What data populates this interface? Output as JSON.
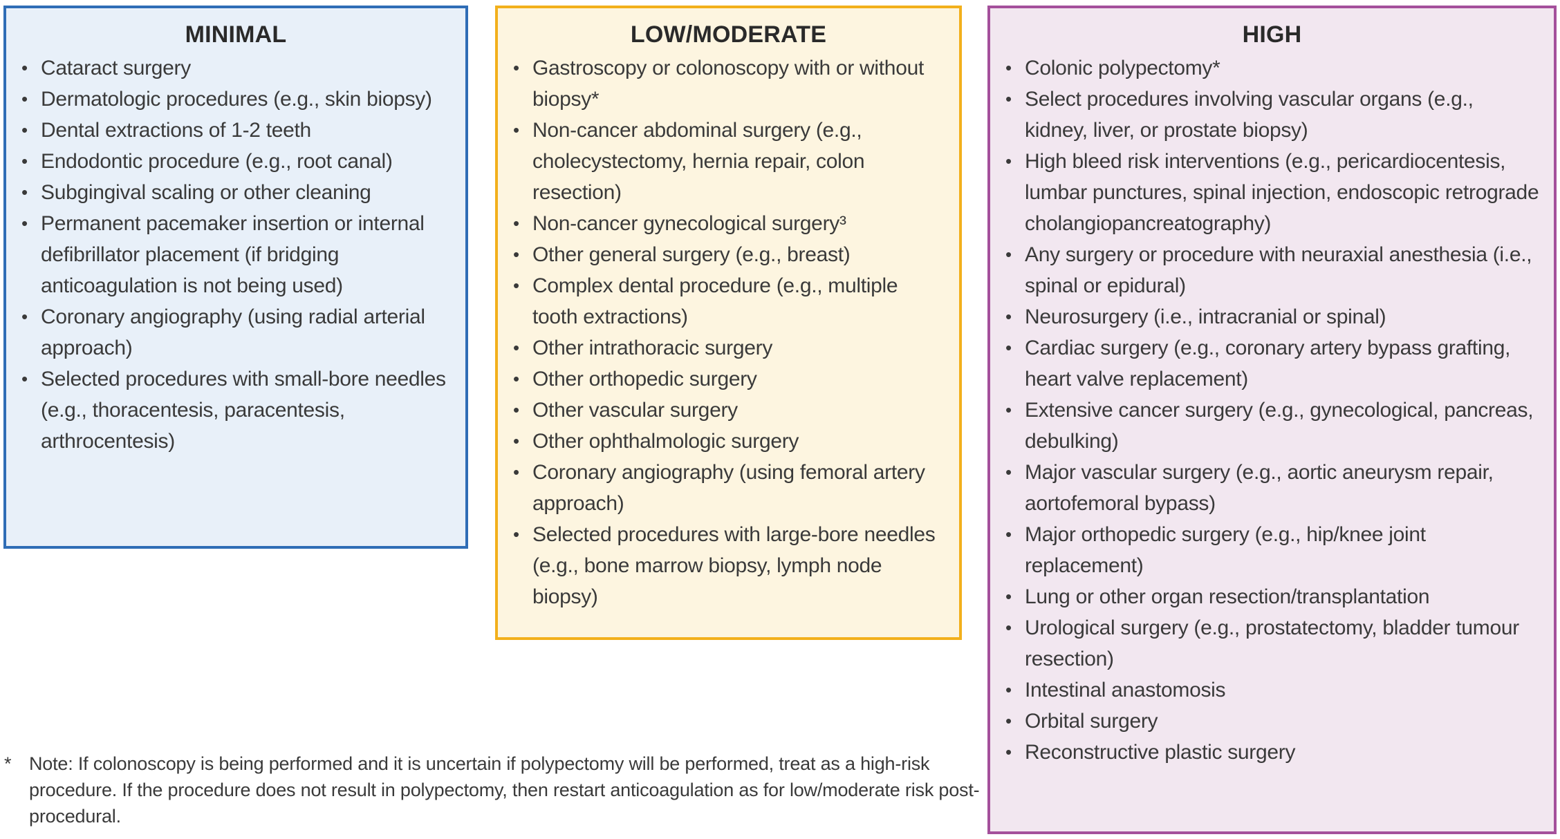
{
  "bullet_glyph": "•",
  "text_color": "#3a3a3a",
  "panels": [
    {
      "id": "minimal",
      "title": "MINIMAL",
      "border_color": "#2f6db6",
      "background_color": "#e8f0f9",
      "items": [
        "Cataract surgery",
        "Dermatologic procedures (e.g., skin biopsy)",
        "Dental extractions of 1-2 teeth",
        "Endodontic procedure (e.g., root canal)",
        "Subgingival scaling or other cleaning",
        "Permanent pacemaker insertion or internal defibrillator placement (if bridging anticoagulation is not being used)",
        "Coronary angiography (using radial arterial approach)",
        "Selected procedures with small-bore needles (e.g., thoracentesis, paracentesis, arthrocentesis)"
      ]
    },
    {
      "id": "low-moderate",
      "title": "LOW/MODERATE",
      "border_color": "#f2b01c",
      "background_color": "#fdf5e0",
      "items": [
        "Gastroscopy or colonoscopy with or without biopsy*",
        "Non-cancer abdominal surgery (e.g., cholecystectomy, hernia repair, colon resection)",
        "Non-cancer gynecological surgery³",
        "Other general surgery (e.g., breast)",
        "Complex dental procedure (e.g., multiple tooth extractions)",
        "Other intrathoracic surgery",
        "Other orthopedic surgery",
        "Other vascular surgery",
        "Other ophthalmologic surgery",
        "Coronary angiography (using femoral artery approach)",
        "Selected procedures with large-bore needles (e.g., bone marrow biopsy, lymph node biopsy)"
      ]
    },
    {
      "id": "high",
      "title": "HIGH",
      "border_color": "#a4509b",
      "background_color": "#f2e7f0",
      "items": [
        "Colonic polypectomy*",
        "Select procedures involving vascular organs (e.g., kidney, liver, or prostate biopsy)",
        "High bleed risk interventions (e.g., pericardiocentesis, lumbar punctures, spinal injection, endoscopic retrograde cholangiopancreatography)",
        "Any surgery or procedure with neuraxial anesthesia (i.e., spinal or epidural)",
        "Neurosurgery (i.e., intracranial or spinal)",
        "Cardiac surgery (e.g., coronary artery bypass grafting, heart valve replacement)",
        "Extensive cancer surgery (e.g., gynecological, pancreas, debulking)",
        "Major vascular surgery (e.g., aortic aneurysm repair, aortofemoral bypass)",
        "Major orthopedic surgery (e.g., hip/knee joint replacement)",
        "Lung or other organ resection/transplantation",
        "Urological surgery (e.g., prostatectomy, bladder tumour resection)",
        "Intestinal anastomosis",
        "Orbital surgery",
        "Reconstructive plastic surgery"
      ]
    }
  ],
  "footnote": {
    "marker": "*",
    "text": "Note: If colonoscopy is being performed and it is uncertain if polypectomy will be performed, treat as a high-risk procedure. If the procedure does not result in polypectomy, then restart anticoagulation as for low/moderate risk post-procedural."
  }
}
